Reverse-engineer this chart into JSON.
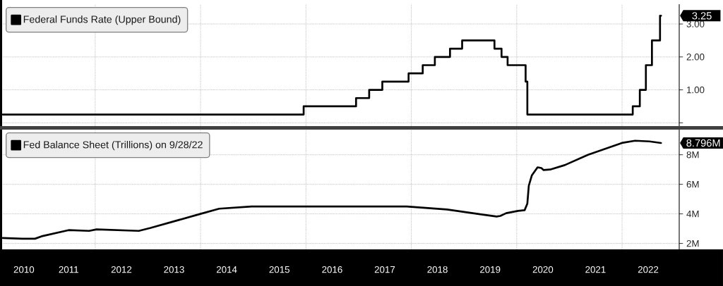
{
  "chart_data": [
    {
      "type": "step",
      "series": [
        {
          "name": "Federal Funds Rate (Upper Bound)",
          "color": "#000000",
          "x": [
            "2010-04-01",
            "2015-12-16",
            "2016-12-14",
            "2017-03-15",
            "2017-06-14",
            "2017-12-13",
            "2018-03-21",
            "2018-06-13",
            "2018-09-26",
            "2018-12-19",
            "2019-07-31",
            "2019-09-18",
            "2019-10-30",
            "2020-03-03",
            "2020-03-15",
            "2022-03-16",
            "2022-05-04",
            "2022-06-15",
            "2022-07-27",
            "2022-09-21",
            "2022-09-28"
          ],
          "values": [
            0.25,
            0.5,
            0.75,
            1.0,
            1.25,
            1.5,
            1.75,
            2.0,
            2.25,
            2.5,
            2.25,
            2.0,
            1.75,
            1.25,
            0.25,
            0.5,
            1.0,
            1.75,
            2.5,
            3.25,
            3.25
          ]
        }
      ],
      "xlim": [
        "2010-04-01",
        "2023-02-01"
      ],
      "ylim": [
        -0.1,
        3.6
      ],
      "xticks": [
        {
          "value": "2012-01-01",
          "label": null
        },
        {
          "value": "2014-01-01",
          "label": null
        },
        {
          "value": "2016-01-01",
          "label": null
        },
        {
          "value": "2018-01-01",
          "label": null
        },
        {
          "value": "2020-01-01",
          "label": null
        },
        {
          "value": "2022-01-01",
          "label": null
        }
      ],
      "yticks": [
        {
          "value": 0,
          "label": null
        },
        {
          "value": 1,
          "label": "1.00"
        },
        {
          "value": 2,
          "label": "2.00"
        },
        {
          "value": 3,
          "label": "3.00"
        }
      ],
      "tick_labels": "y",
      "grid": true,
      "legend": "top left",
      "line_style": "solid",
      "annotations": [
        "3.25"
      ]
    },
    {
      "type": "line",
      "series": [
        {
          "name": "Fed Balance Sheet (Trillions) on 9/28/22",
          "color": "#000000",
          "x": [
            "2010-04-01",
            "2010-08-15",
            "2010-11-10",
            "2011-01-01",
            "2011-06-30",
            "2011-11-20",
            "2012-01-10",
            "2012-10-30",
            "2013-01-20",
            "2013-12-31",
            "2014-05-10",
            "2014-12-20",
            "2016-01-01",
            "2017-11-30",
            "2018-09-05",
            "2019-05-10",
            "2019-08-15",
            "2019-09-10",
            "2019-10-20",
            "2020-01-10",
            "2020-02-25",
            "2020-03-15",
            "2020-03-25",
            "2020-04-15",
            "2020-05-25",
            "2020-06-20",
            "2020-07-05",
            "2020-08-20",
            "2020-11-30",
            "2021-05-10",
            "2021-12-31",
            "2022-04-01",
            "2022-07-10",
            "2022-09-28"
          ],
          "values": [
            2.37,
            2.32,
            2.32,
            2.5,
            2.9,
            2.85,
            2.95,
            2.85,
            3.05,
            4.0,
            4.35,
            4.5,
            4.5,
            4.5,
            4.3,
            3.95,
            3.82,
            3.86,
            4.05,
            4.2,
            4.25,
            4.7,
            5.9,
            6.6,
            7.15,
            7.1,
            6.97,
            7.0,
            7.3,
            8.0,
            8.8,
            8.95,
            8.9,
            8.796
          ]
        }
      ],
      "xlim": [
        "2010-04-01",
        "2023-02-01"
      ],
      "ylim": [
        1.6,
        9.7
      ],
      "xticks": [
        {
          "value": "2010-08-25",
          "label": "2010"
        },
        {
          "value": "2011-07-01",
          "label": "2011"
        },
        {
          "value": "2012-01-01",
          "label": null
        },
        {
          "value": "2012-07-01",
          "label": "2012"
        },
        {
          "value": "2013-07-01",
          "label": "2013"
        },
        {
          "value": "2014-01-01",
          "label": null
        },
        {
          "value": "2014-07-01",
          "label": "2014"
        },
        {
          "value": "2015-07-01",
          "label": "2015"
        },
        {
          "value": "2016-01-01",
          "label": null
        },
        {
          "value": "2016-07-01",
          "label": "2016"
        },
        {
          "value": "2017-07-01",
          "label": "2017"
        },
        {
          "value": "2018-01-01",
          "label": null
        },
        {
          "value": "2018-07-01",
          "label": "2018"
        },
        {
          "value": "2019-07-01",
          "label": "2019"
        },
        {
          "value": "2020-01-01",
          "label": null
        },
        {
          "value": "2020-07-01",
          "label": "2020"
        },
        {
          "value": "2021-07-01",
          "label": "2021"
        },
        {
          "value": "2022-01-01",
          "label": null
        },
        {
          "value": "2022-07-01",
          "label": "2022"
        }
      ],
      "yticks": [
        {
          "value": 2,
          "label": "2M"
        },
        {
          "value": 4,
          "label": "4M"
        },
        {
          "value": 6,
          "label": "6M"
        },
        {
          "value": 8,
          "label": "8M"
        }
      ],
      "grid": true,
      "legend": "top left",
      "line_style": "solid",
      "annotations": [
        "8.796M"
      ]
    }
  ]
}
